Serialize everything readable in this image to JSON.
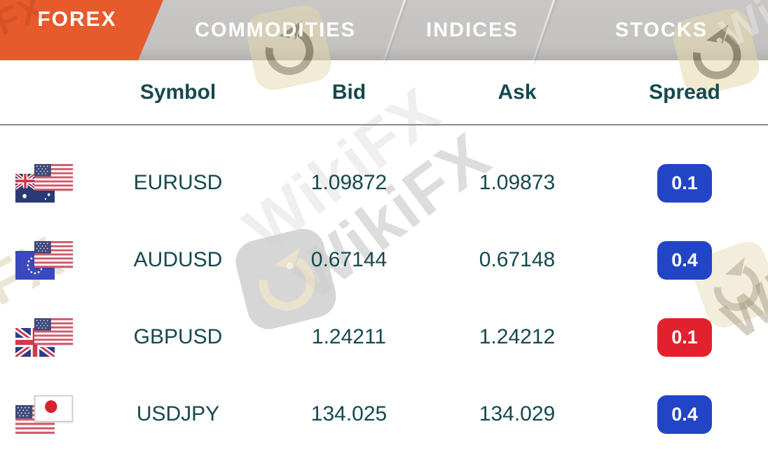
{
  "tabs": [
    {
      "label": "FOREX",
      "active": true
    },
    {
      "label": "COMMODITIES",
      "active": false
    },
    {
      "label": "INDICES",
      "active": false
    },
    {
      "label": "STOCKS",
      "active": false
    }
  ],
  "table": {
    "headers": [
      "Symbol",
      "Bid",
      "Ask",
      "Spread"
    ],
    "rows": [
      {
        "symbol": "EURUSD",
        "bid": "1.09872",
        "ask": "1.09873",
        "spread": "0.1",
        "spread_color": "#2244C7",
        "flag_back": "australia",
        "flag_front": "usa"
      },
      {
        "symbol": "AUDUSD",
        "bid": "0.67144",
        "ask": "0.67148",
        "spread": "0.4",
        "spread_color": "#2244C7",
        "flag_back": "eu",
        "flag_front": "usa"
      },
      {
        "symbol": "GBPUSD",
        "bid": "1.24211",
        "ask": "1.24212",
        "spread": "0.1",
        "spread_color": "#E3212E",
        "flag_back": "uk",
        "flag_front": "usa"
      },
      {
        "symbol": "USDJPY",
        "bid": "134.025",
        "ask": "134.029",
        "spread": "0.4",
        "spread_color": "#2244C7",
        "flag_back": "usa",
        "flag_front": "japan"
      }
    ]
  },
  "watermark": {
    "text": "WikiFX",
    "fx": "FX",
    "wi": "Wi"
  },
  "colors": {
    "active_tab_orange": "#E75A2B",
    "inactive_tab_gray": "#C3C2C1",
    "header_teal": "#16494F",
    "value_teal": "#16494F",
    "badge_blue": "#2244C7",
    "badge_red": "#E3212E"
  }
}
